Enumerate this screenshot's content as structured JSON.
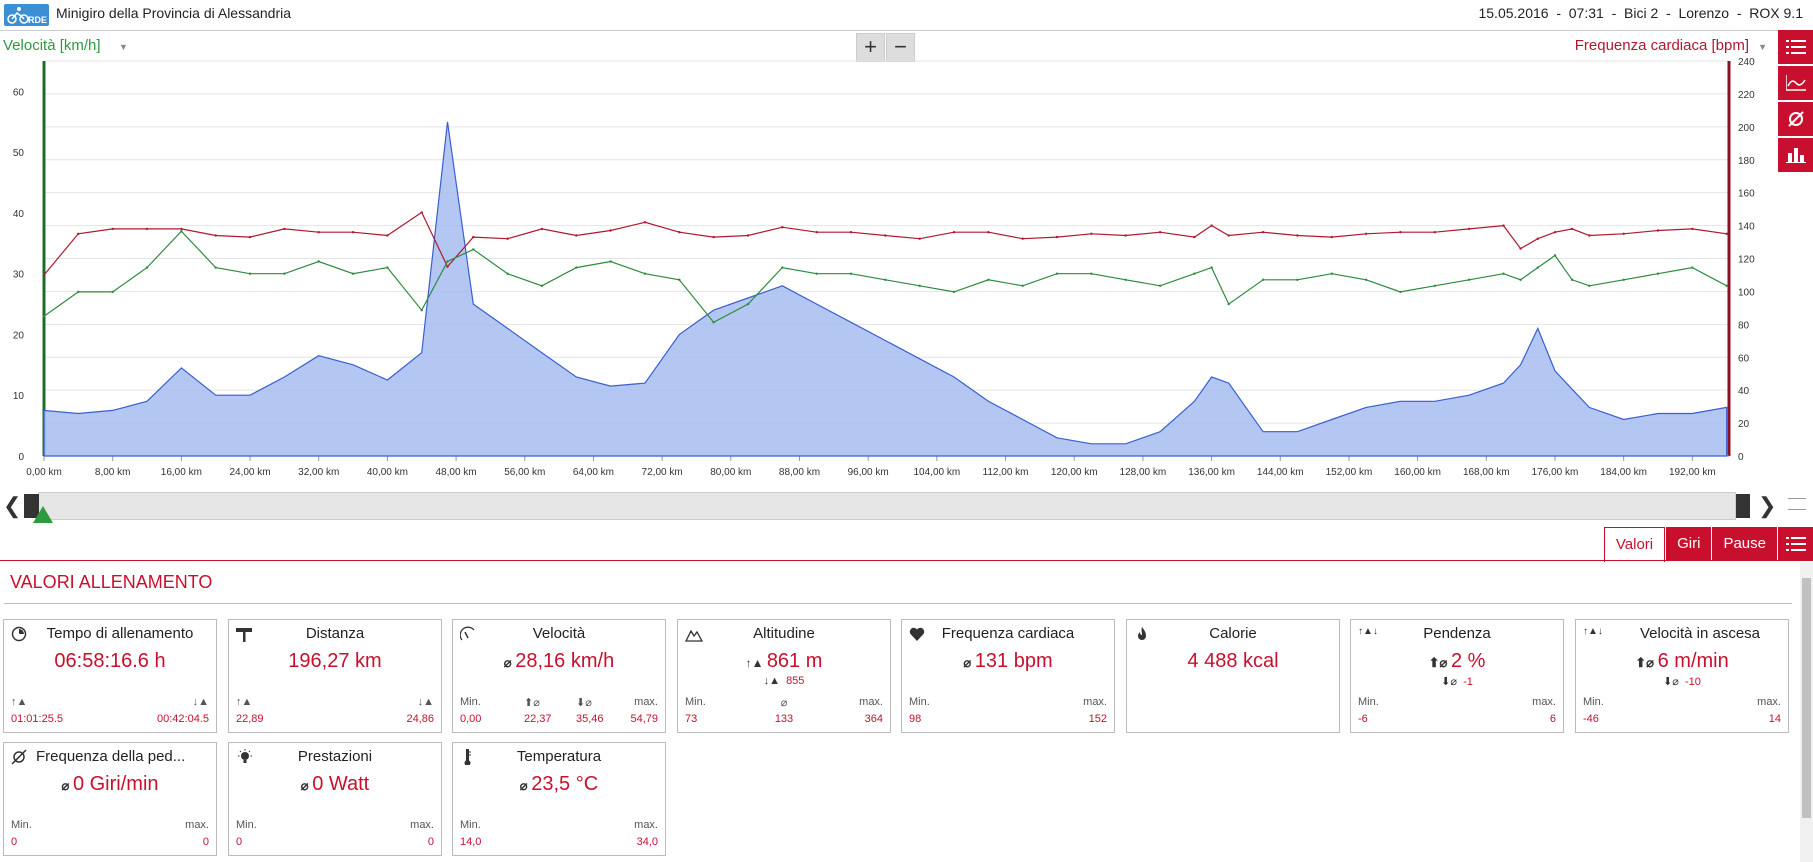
{
  "header": {
    "logo_text": "RDE",
    "title": "Minigiro della Provincia di Alessandria",
    "session": "15.05.2016  -  07:31  -  Bici 2  -  Lorenzo  -  ROX 9.1"
  },
  "chart": {
    "left_axis_title": "Velocità [km/h]",
    "right_axis_title": "Frequenza cardiaca [bpm]",
    "zoom_in": "+",
    "zoom_out": "−",
    "left_ticks": [
      "0",
      "10",
      "20",
      "30",
      "40",
      "50",
      "60"
    ],
    "right_ticks": [
      "0",
      "20",
      "40",
      "60",
      "80",
      "100",
      "120",
      "140",
      "160",
      "180",
      "200",
      "220",
      "240"
    ],
    "x_ticks": [
      "0,00 km",
      "8,00 km",
      "16,00 km",
      "24,00 km",
      "32,00 km",
      "40,00 km",
      "48,00 km",
      "56,00 km",
      "64,00 km",
      "72,00 km",
      "80,00 km",
      "88,00 km",
      "96,00 km",
      "104,00 km",
      "112,00 km",
      "120,00 km",
      "128,00 km",
      "136,00 km",
      "144,00 km",
      "152,00 km",
      "160,00 km",
      "168,00 km",
      "176,00 km",
      "184,00 km",
      "192,00 km"
    ],
    "colors": {
      "speed": "#2e8b3e",
      "heart_rate": "#b0182f",
      "altitude_fill": "#a6bdf0",
      "altitude_line": "#3a5fcf"
    }
  },
  "chart_data": {
    "type": "line",
    "x_label": "",
    "x_unit": "km",
    "left_axis": {
      "label": "Velocità [km/h]",
      "ylim": [
        0,
        65
      ]
    },
    "right_axis": {
      "label": "Frequenza cardiaca [bpm]",
      "ylim": [
        0,
        240
      ]
    },
    "grid": true,
    "x": [
      0,
      4,
      8,
      12,
      16,
      20,
      24,
      28,
      32,
      36,
      40,
      44,
      47,
      50,
      54,
      58,
      62,
      66,
      70,
      74,
      78,
      82,
      86,
      90,
      94,
      98,
      102,
      106,
      110,
      114,
      118,
      122,
      126,
      130,
      134,
      136,
      138,
      142,
      146,
      150,
      154,
      158,
      162,
      166,
      170,
      172,
      174,
      176,
      178,
      180,
      184,
      188,
      192,
      196
    ],
    "series": [
      {
        "name": "Velocità [km/h]",
        "axis": "left",
        "values": [
          23,
          27,
          27,
          31,
          37,
          31,
          30,
          30,
          32,
          30,
          31,
          24,
          32,
          34,
          30,
          28,
          31,
          32,
          30,
          29,
          22,
          25,
          31,
          30,
          30,
          29,
          28,
          27,
          29,
          28,
          30,
          30,
          29,
          28,
          30,
          31,
          25,
          29,
          29,
          30,
          29,
          27,
          28,
          29,
          30,
          29,
          31,
          33,
          29,
          28,
          29,
          30,
          31,
          28
        ]
      },
      {
        "name": "Frequenza cardiaca [bpm]",
        "axis": "right",
        "values": [
          110,
          135,
          138,
          138,
          138,
          134,
          133,
          138,
          136,
          136,
          134,
          148,
          115,
          133,
          132,
          138,
          134,
          137,
          142,
          136,
          133,
          134,
          139,
          136,
          136,
          134,
          132,
          136,
          136,
          132,
          133,
          135,
          134,
          136,
          133,
          140,
          134,
          136,
          134,
          133,
          135,
          136,
          136,
          138,
          140,
          126,
          132,
          136,
          138,
          134,
          135,
          137,
          138,
          135
        ]
      },
      {
        "name": "Altitudine",
        "axis": "left",
        "values": [
          7.5,
          7,
          7.5,
          9,
          14.5,
          10,
          10,
          13,
          16.5,
          15,
          12.5,
          17,
          55,
          25,
          21,
          17,
          13,
          11.5,
          12,
          20,
          24,
          26,
          28,
          25,
          22,
          19,
          16,
          13,
          9,
          6,
          3,
          2,
          2,
          4,
          9,
          13,
          12,
          4,
          4,
          6,
          8,
          9,
          9,
          10,
          12,
          15,
          21,
          14,
          11,
          8,
          6,
          7,
          7,
          8
        ]
      }
    ]
  },
  "tabs": [
    "Valori",
    "Giri",
    "Pause"
  ],
  "section_title": "VALORI ALLENAMENTO",
  "cards": {
    "time": {
      "title": "Tempo di allenamento",
      "main": "06:58:16.6 h",
      "up": "01:01:25.5",
      "down": "00:42:04.5"
    },
    "distance": {
      "title": "Distanza",
      "main": "196,27 km",
      "up": "22,89",
      "down": "24,86"
    },
    "speed": {
      "title": "Velocità",
      "main": "28,16 km/h",
      "min_label": "Min.",
      "avg_up_label": "⬆⌀",
      "avg_down_label": "⬇⌀",
      "max_label": "max.",
      "min": "0,00",
      "avg_up": "22,37",
      "avg_down": "35,46",
      "max": "54,79"
    },
    "altitude": {
      "title": "Altitudine",
      "main": "861 m",
      "sub": "855",
      "min_label": "Min.",
      "avg_label": "⌀",
      "max_label": "max.",
      "min": "73",
      "avg": "133",
      "max": "364"
    },
    "heart_rate": {
      "title": "Frequenza cardiaca",
      "main": "131 bpm",
      "min_label": "Min.",
      "max_label": "max.",
      "min": "98",
      "max": "152"
    },
    "calories": {
      "title": "Calorie",
      "main": "4 488 kcal"
    },
    "slope": {
      "title": "Pendenza",
      "main": "2 %",
      "sub": "-1",
      "min_label": "Min.",
      "max_label": "max.",
      "min": "-6",
      "max": "6"
    },
    "climb_speed": {
      "title": "Velocità in ascesa",
      "main": "6 m/min",
      "sub": "-10",
      "min_label": "Min.",
      "max_label": "max.",
      "min": "-46",
      "max": "14"
    },
    "cadence": {
      "title": "Frequenza della ped...",
      "main": "0 Giri/min",
      "min_label": "Min.",
      "max_label": "max.",
      "min": "0",
      "max": "0"
    },
    "power": {
      "title": "Prestazioni",
      "main": "0 Watt",
      "min_label": "Min.",
      "max_label": "max.",
      "min": "0",
      "max": "0"
    },
    "temperature": {
      "title": "Temperatura",
      "main": "23,5 °C",
      "min_label": "Min.",
      "max_label": "max.",
      "min": "14,0",
      "max": "34,0"
    }
  }
}
